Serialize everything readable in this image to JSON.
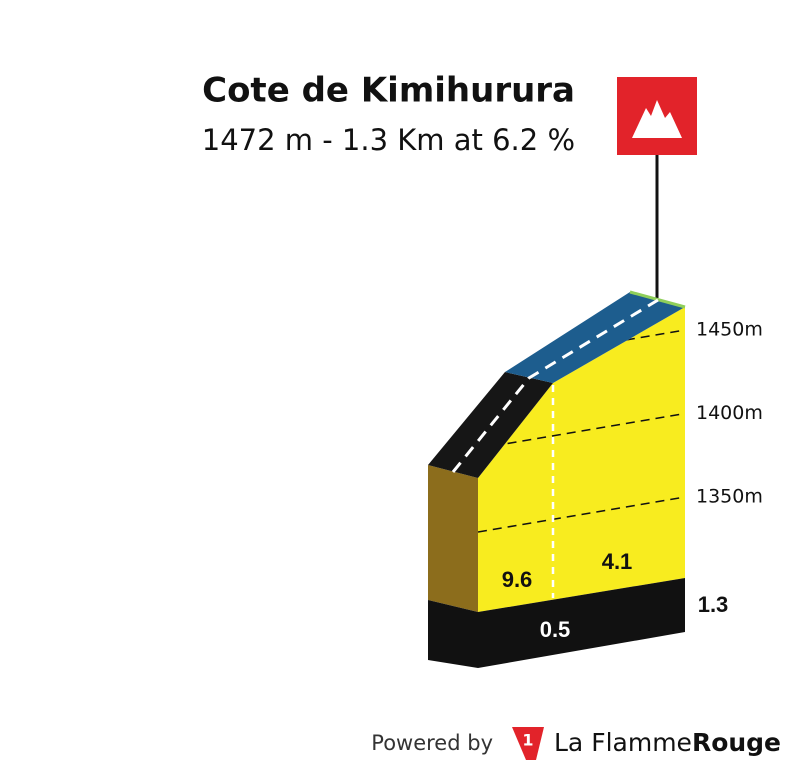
{
  "title": "Cote de Kimihurura",
  "subtitle": "1472 m - 1.3 Km at 6.2 %",
  "elevation_ticks": [
    {
      "value": 1350,
      "label": "1350m"
    },
    {
      "value": 1400,
      "label": "1400m"
    },
    {
      "value": 1450,
      "label": "1450m"
    }
  ],
  "segments": [
    {
      "gradient": 9.6
    },
    {
      "gradient": 4.1
    }
  ],
  "split_distance": 0.5,
  "total_distance": 1.3,
  "footer": {
    "powered_by": "Powered by",
    "brand_light": "La Flamme",
    "brand_bold": "Rouge"
  }
}
